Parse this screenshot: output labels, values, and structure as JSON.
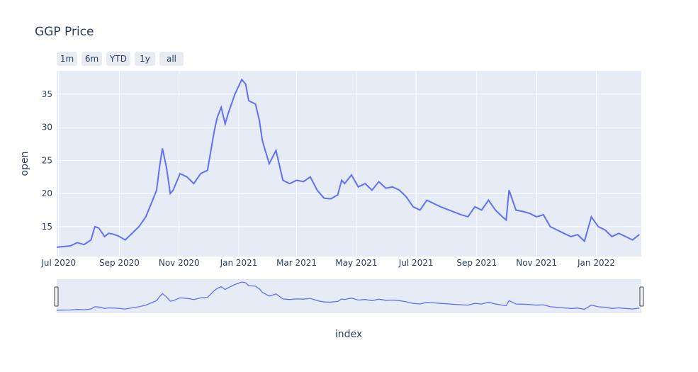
{
  "chart_data": {
    "type": "line",
    "title": "GGP Price",
    "xlabel": "index",
    "ylabel": "open",
    "x_range": [
      "2020-06-29",
      "2022-02-16"
    ],
    "y_range": [
      10.5,
      38.5
    ],
    "y_ticks": [
      15,
      20,
      25,
      30,
      35
    ],
    "x_ticks": [
      {
        "date": "2020-07-01",
        "label": "Jul 2020"
      },
      {
        "date": "2020-09-01",
        "label": "Sep 2020"
      },
      {
        "date": "2020-11-01",
        "label": "Nov 2020"
      },
      {
        "date": "2021-01-01",
        "label": "Jan 2021"
      },
      {
        "date": "2021-03-01",
        "label": "Mar 2021"
      },
      {
        "date": "2021-05-01",
        "label": "May 2021"
      },
      {
        "date": "2021-07-01",
        "label": "Jul 2021"
      },
      {
        "date": "2021-09-01",
        "label": "Sep 2021"
      },
      {
        "date": "2021-11-01",
        "label": "Nov 2021"
      },
      {
        "date": "2022-01-01",
        "label": "Jan 2022"
      }
    ],
    "grid": true,
    "line_color": "#636efa",
    "plot_bg": "#e5ecf6",
    "range_selector_buttons": [
      "1m",
      "6m",
      "YTD",
      "1y",
      "all"
    ],
    "range_slider": true,
    "series": [
      {
        "x": [
          "2020-06-29",
          "2020-07-06",
          "2020-07-13",
          "2020-07-20",
          "2020-07-27",
          "2020-08-03",
          "2020-08-07",
          "2020-08-11",
          "2020-08-17",
          "2020-08-21",
          "2020-08-25",
          "2020-08-31",
          "2020-09-07",
          "2020-09-14",
          "2020-09-21",
          "2020-09-28",
          "2020-10-05",
          "2020-10-09",
          "2020-10-12",
          "2020-10-15",
          "2020-10-19",
          "2020-10-23",
          "2020-10-26",
          "2020-11-02",
          "2020-11-09",
          "2020-11-16",
          "2020-11-23",
          "2020-11-30",
          "2020-12-07",
          "2020-12-10",
          "2020-12-14",
          "2020-12-18",
          "2020-12-21",
          "2020-12-28",
          "2021-01-04",
          "2021-01-08",
          "2021-01-11",
          "2021-01-18",
          "2021-01-22",
          "2021-01-25",
          "2021-01-29",
          "2021-02-01",
          "2021-02-08",
          "2021-02-15",
          "2021-02-22",
          "2021-03-01",
          "2021-03-08",
          "2021-03-15",
          "2021-03-22",
          "2021-03-29",
          "2021-04-05",
          "2021-04-12",
          "2021-04-16",
          "2021-04-19",
          "2021-04-26",
          "2021-05-03",
          "2021-05-10",
          "2021-05-17",
          "2021-05-24",
          "2021-05-31",
          "2021-06-07",
          "2021-06-14",
          "2021-06-21",
          "2021-06-28",
          "2021-07-05",
          "2021-07-12",
          "2021-07-19",
          "2021-07-26",
          "2021-08-02",
          "2021-08-09",
          "2021-08-16",
          "2021-08-23",
          "2021-08-30",
          "2021-09-06",
          "2021-09-13",
          "2021-09-20",
          "2021-09-27",
          "2021-10-01",
          "2021-10-04",
          "2021-10-11",
          "2021-10-18",
          "2021-10-25",
          "2021-11-01",
          "2021-11-08",
          "2021-11-15",
          "2021-11-22",
          "2021-11-29",
          "2021-12-06",
          "2021-12-13",
          "2021-12-20",
          "2021-12-27",
          "2022-01-03",
          "2022-01-10",
          "2022-01-17",
          "2022-01-24",
          "2022-01-31",
          "2022-02-07",
          "2022-02-14"
        ],
        "y": [
          11.9,
          12.0,
          12.1,
          12.6,
          12.3,
          13.0,
          15.0,
          14.8,
          13.5,
          14.0,
          13.9,
          13.6,
          13.0,
          14.0,
          15.0,
          16.5,
          19.0,
          20.5,
          24.0,
          26.8,
          24.0,
          20.0,
          20.5,
          23.0,
          22.5,
          21.5,
          23.0,
          23.5,
          29.5,
          31.5,
          33.0,
          30.5,
          32.0,
          35.0,
          37.2,
          36.5,
          34.0,
          33.5,
          31.0,
          28.0,
          26.0,
          24.5,
          26.5,
          22.0,
          21.5,
          22.0,
          21.8,
          22.5,
          20.5,
          19.3,
          19.2,
          19.8,
          22.0,
          21.5,
          22.8,
          21.0,
          21.5,
          20.5,
          21.8,
          20.8,
          21.0,
          20.5,
          19.5,
          18.0,
          17.5,
          19.0,
          18.5,
          18.0,
          17.6,
          17.2,
          16.8,
          16.5,
          18.0,
          17.5,
          19.0,
          17.5,
          16.5,
          16.0,
          20.5,
          17.5,
          17.3,
          17.0,
          16.5,
          16.8,
          15.0,
          14.5,
          14.0,
          13.5,
          13.8,
          12.8,
          16.5,
          15.0,
          14.5,
          13.5,
          14.0,
          13.5,
          13.0,
          13.8
        ]
      }
    ]
  }
}
